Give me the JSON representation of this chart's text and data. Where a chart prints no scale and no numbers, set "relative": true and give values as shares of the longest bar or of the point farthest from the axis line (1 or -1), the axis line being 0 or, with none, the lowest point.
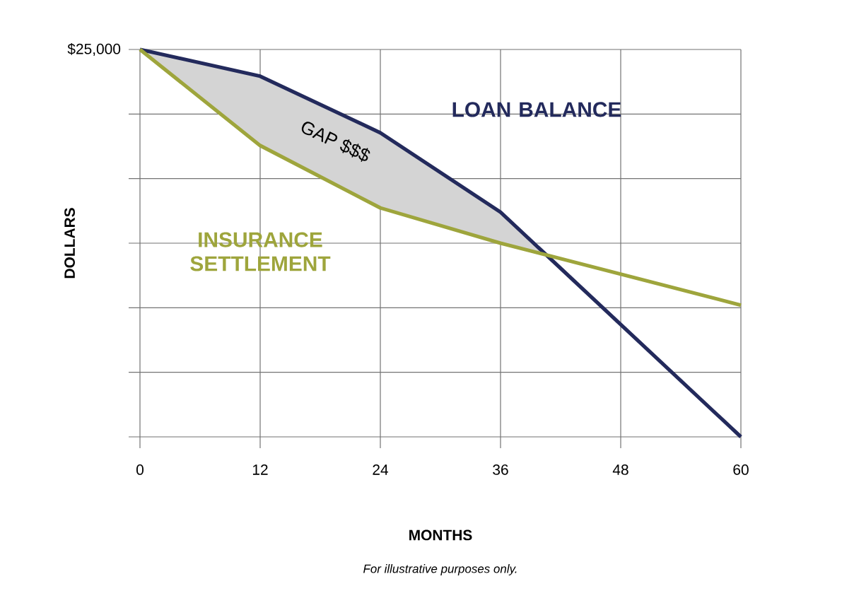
{
  "chart_data": {
    "type": "line",
    "xlabel": "MONTHS",
    "ylabel": "DOLLARS",
    "x": [
      0,
      12,
      24,
      36,
      60
    ],
    "series": [
      {
        "name": "LOAN BALANCE",
        "color": "#232a5c",
        "x": [
          0,
          12,
          24,
          36,
          40.6,
          60
        ],
        "values": [
          1,
          0.931,
          0.785,
          0.58,
          0.469,
          0
        ],
        "upper": [
          1,
          0.931,
          0.785,
          0.58,
          0.469,
          null
        ],
        "lower": [
          1,
          0.752,
          0.591,
          0.5,
          0.469,
          null
        ]
      },
      {
        "name": "INSURANCE SETTLEMENT",
        "color": "#9ea53c",
        "values": [
          1,
          0.752,
          0.591,
          0.5,
          0.34
        ]
      }
    ],
    "relative": true,
    "xlim": [
      0,
      60
    ],
    "xticks": [
      0,
      12,
      24,
      36,
      48,
      60
    ],
    "grid": true,
    "marker": "none",
    "line_style": "solid",
    "annotations": [
      {
        "text": "$25,000",
        "x": 0,
        "y": 1
      },
      "GAP $$$",
      "For illustrative purposes only."
    ]
  }
}
